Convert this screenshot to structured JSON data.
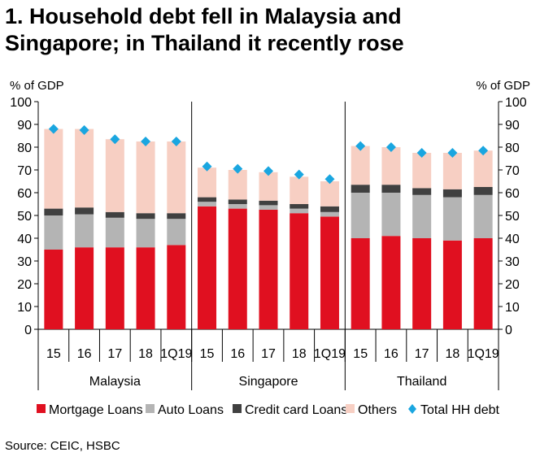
{
  "title_line1": "1. Household debt fell in Malaysia and",
  "title_line2": "Singapore; in Thailand it recently rose",
  "source": "Source: CEIC, HSBC",
  "colors": {
    "mortgage": "#e01020",
    "auto": "#b4b4b4",
    "credit": "#404040",
    "others": "#f7cfc3",
    "total": "#1aa6e0"
  },
  "chart_data": {
    "type": "bar",
    "stacked": true,
    "ylabel_left": "% of GDP",
    "ylabel_right": "% of GDP",
    "ylim": [
      0,
      100
    ],
    "yticks": [
      0,
      10,
      20,
      30,
      40,
      50,
      60,
      70,
      80,
      90,
      100
    ],
    "groups": [
      {
        "name": "Malaysia",
        "categories": [
          "15",
          "16",
          "17",
          "18",
          "1Q19"
        ]
      },
      {
        "name": "Singapore",
        "categories": [
          "15",
          "16",
          "17",
          "18",
          "1Q19"
        ]
      },
      {
        "name": "Thailand",
        "categories": [
          "15",
          "16",
          "17",
          "18",
          "1Q19"
        ]
      }
    ],
    "series": [
      {
        "name": "Mortgage Loans",
        "key": "mortgage",
        "values": [
          35,
          36,
          36,
          36,
          37,
          54,
          53,
          52.5,
          51,
          49.5,
          40,
          41,
          40,
          39,
          40
        ]
      },
      {
        "name": "Auto Loans",
        "key": "auto",
        "values": [
          15,
          14.5,
          13,
          12.5,
          11.5,
          2,
          2,
          2,
          2,
          2,
          20,
          19,
          19,
          19,
          19
        ]
      },
      {
        "name": "Credit card Loans",
        "key": "credit",
        "values": [
          3,
          3,
          2.5,
          2.5,
          2.5,
          2,
          2,
          2,
          2,
          2.5,
          3.5,
          3.5,
          3,
          3.5,
          3.5
        ]
      },
      {
        "name": "Others",
        "key": "others",
        "values": [
          35,
          34.5,
          32,
          31.5,
          31.5,
          13,
          13,
          12.5,
          12,
          11,
          17,
          16.5,
          15.5,
          16,
          16
        ]
      }
    ],
    "total_series": {
      "name": "Total HH debt",
      "key": "total",
      "values": [
        88,
        87.5,
        83.5,
        82.5,
        82.5,
        71.5,
        70.5,
        69.5,
        68,
        66,
        80.5,
        80,
        77.5,
        77.5,
        78.5
      ]
    },
    "legend_position": "bottom"
  }
}
